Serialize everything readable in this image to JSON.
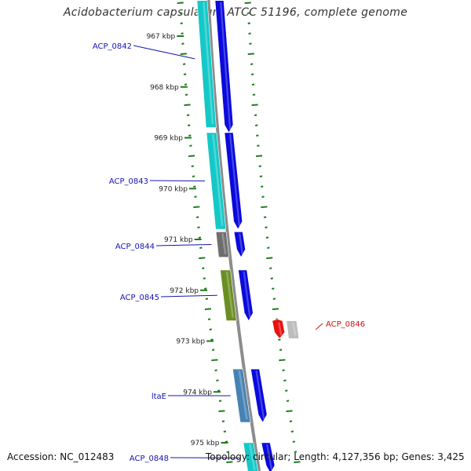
{
  "title": "Acidobacterium capsulatum ATCC 51196, complete genome",
  "footer": {
    "accession": "Accession: NC_012483",
    "summary": "Topology: circular; Length: 4,127,356 bp; Genes: 3,425"
  },
  "colors": {
    "backbone": "#8c8c8c",
    "tick": "#1e7a1e",
    "label_blue": "#1414b4",
    "label_red": "#d01010",
    "cds_blue": "#0a0adc",
    "cyan": "#14c8c8",
    "gray": "#6e6e6e",
    "olive": "#6b8e23",
    "steelblue": "#4682b4",
    "red": "#e81010",
    "lightgray": "#bdbdbd"
  },
  "axis": {
    "unit": "kbp",
    "ticks": [
      967,
      968,
      969,
      970,
      971,
      972,
      973,
      974,
      975
    ],
    "tick_labels": [
      "967 kbp",
      "968 kbp",
      "969 kbp",
      "970 kbp",
      "971 kbp",
      "972 kbp",
      "973 kbp",
      "974 kbp",
      "975 kbp"
    ]
  },
  "features": [
    {
      "id": "f1",
      "start": 966.3,
      "end": 968.9,
      "strand": "+",
      "type": "CDS",
      "color": "cds_blue",
      "label": "ACP_0842",
      "label_color": "label_blue"
    },
    {
      "id": "f2",
      "start": 966.3,
      "end": 968.8,
      "strand": "+",
      "type": "gene",
      "color": "cyan"
    },
    {
      "id": "f3",
      "start": 968.9,
      "end": 970.8,
      "strand": "+",
      "type": "CDS",
      "color": "cds_blue",
      "label": "ACP_0843",
      "label_color": "label_blue"
    },
    {
      "id": "f4",
      "start": 968.9,
      "end": 970.8,
      "strand": "+",
      "type": "gene",
      "color": "cyan"
    },
    {
      "id": "f5",
      "start": 970.85,
      "end": 971.35,
      "strand": "+",
      "type": "CDS",
      "color": "cds_blue",
      "label": "ACP_0844",
      "label_color": "label_blue"
    },
    {
      "id": "f6",
      "start": 970.85,
      "end": 971.35,
      "strand": "+",
      "type": "gene",
      "color": "gray"
    },
    {
      "id": "f7",
      "start": 971.6,
      "end": 972.6,
      "strand": "+",
      "type": "CDS",
      "color": "cds_blue",
      "label": "ACP_0845",
      "label_color": "label_blue"
    },
    {
      "id": "f8",
      "start": 971.6,
      "end": 972.6,
      "strand": "+",
      "type": "gene",
      "color": "olive"
    },
    {
      "id": "f9",
      "start": 972.6,
      "end": 972.95,
      "strand": "-",
      "type": "CDS",
      "color": "red",
      "label": "ACP_0846",
      "label_color": "label_red"
    },
    {
      "id": "f10",
      "start": 972.6,
      "end": 972.95,
      "strand": "-",
      "type": "gene",
      "color": "lightgray"
    },
    {
      "id": "f11",
      "start": 973.55,
      "end": 974.6,
      "strand": "+",
      "type": "CDS",
      "color": "cds_blue",
      "label": "ltaE",
      "label_color": "label_blue"
    },
    {
      "id": "f12",
      "start": 973.55,
      "end": 974.6,
      "strand": "+",
      "type": "gene",
      "color": "steelblue"
    },
    {
      "id": "f13",
      "start": 975.0,
      "end": 975.6,
      "strand": "+",
      "type": "CDS",
      "color": "cds_blue",
      "label": "ACP_0848",
      "label_color": "label_blue"
    },
    {
      "id": "f14",
      "start": 975.0,
      "end": 975.6,
      "strand": "+",
      "type": "gene",
      "color": "cyan"
    }
  ]
}
